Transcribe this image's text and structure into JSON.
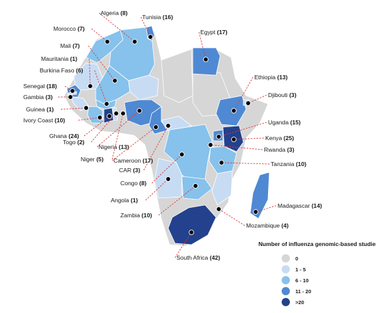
{
  "colors": {
    "c0": "#d6d6d6",
    "c1": "#c7dcf3",
    "c2": "#86c2ec",
    "c3": "#4f89d3",
    "c4": "#23418d"
  },
  "legend": {
    "title": "Number of influenza genomic-based studies",
    "items": [
      {
        "label": "0",
        "class": "c0"
      },
      {
        "label": "1 - 5",
        "class": "c1"
      },
      {
        "label": "6 - 10",
        "class": "c2"
      },
      {
        "label": "11 - 20",
        "class": "c3"
      },
      {
        "label": ">20",
        "class": "c4"
      }
    ]
  },
  "countries": [
    {
      "name": "Algeria",
      "count": "(8)",
      "class": "c2"
    },
    {
      "name": "Tunisia",
      "count": "(16)",
      "class": "c3"
    },
    {
      "name": "Morocco",
      "count": "(7)",
      "class": "c2"
    },
    {
      "name": "Egypt",
      "count": "(17)",
      "class": "c3"
    },
    {
      "name": "Mali",
      "count": "(7)",
      "class": "c2"
    },
    {
      "name": "Mauritania",
      "count": "(1)",
      "class": "c1"
    },
    {
      "name": "Burkina Faso",
      "count": "(6)",
      "class": "c2"
    },
    {
      "name": "Ethiopia",
      "count": "(13)",
      "class": "c3"
    },
    {
      "name": "Senegal",
      "count": "(18)",
      "class": "c3"
    },
    {
      "name": "Djibouti",
      "count": "(3)",
      "class": "c1"
    },
    {
      "name": "Gambia",
      "count": "(3)",
      "class": "c1"
    },
    {
      "name": "Guinea",
      "count": "(1)",
      "class": "c1"
    },
    {
      "name": "Ivory Coast",
      "count": "(10)",
      "class": "c2"
    },
    {
      "name": "Uganda",
      "count": "(15)",
      "class": "c3"
    },
    {
      "name": "Ghana",
      "count": "(24)",
      "class": "c4"
    },
    {
      "name": "Kenya",
      "count": "(25)",
      "class": "c4"
    },
    {
      "name": "Togo",
      "count": "(2)",
      "class": "c1"
    },
    {
      "name": "Nigeria",
      "count": "(13)",
      "class": "c3"
    },
    {
      "name": "Rwanda",
      "count": "(3)",
      "class": "c1"
    },
    {
      "name": "Niger",
      "count": "(5)",
      "class": "c1"
    },
    {
      "name": "Cameroon",
      "count": "(17)",
      "class": "c3"
    },
    {
      "name": "Tanzania",
      "count": "(10)",
      "class": "c2"
    },
    {
      "name": "CAR",
      "count": "(3)",
      "class": "c1"
    },
    {
      "name": "Congo",
      "count": "(8)",
      "class": "c2"
    },
    {
      "name": "Angola",
      "count": "(1)",
      "class": "c1"
    },
    {
      "name": "Madagascar",
      "count": "(14)",
      "class": "c3"
    },
    {
      "name": "Zambia",
      "count": "(10)",
      "class": "c2"
    },
    {
      "name": "Mozambique",
      "count": "(4)",
      "class": "c1"
    },
    {
      "name": "South Africa",
      "count": "(42)",
      "class": "c4"
    }
  ]
}
